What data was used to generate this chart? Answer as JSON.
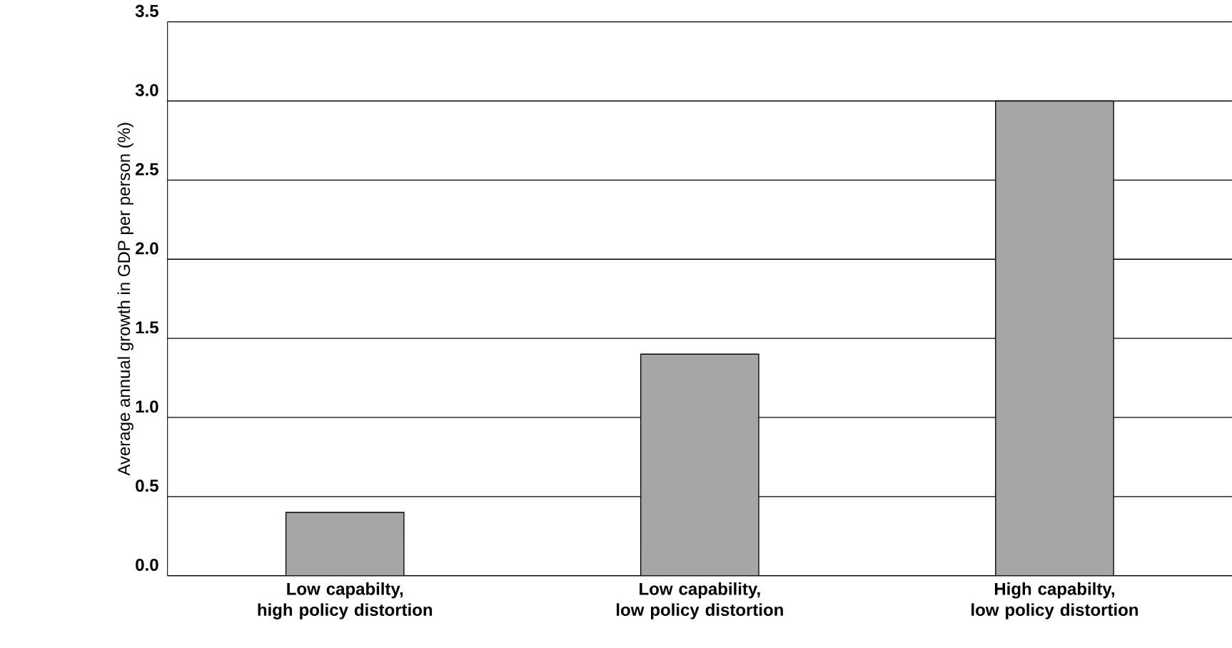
{
  "chart_data": {
    "type": "bar",
    "ylabel": "Average annual growth in GDP per person (%)",
    "categories": [
      "Low capabilty,\nhigh policy distortion",
      "Low capability,\nlow policy distortion",
      "High capabilty,\nlow policy distortion"
    ],
    "values": [
      0.4,
      1.4,
      3.0
    ],
    "color": "#a6a6a6",
    "ylim": [
      0,
      3.5
    ],
    "yticks": [
      {
        "value": 0,
        "label": "0.0"
      },
      {
        "value": 0.5,
        "label": "0.5"
      },
      {
        "value": 1,
        "label": "1.0"
      },
      {
        "value": 1.5,
        "label": "1.5"
      },
      {
        "value": 2,
        "label": "2.0"
      },
      {
        "value": 2.5,
        "label": "2.5"
      },
      {
        "value": 3,
        "label": "3.0"
      },
      {
        "value": 3.5,
        "label": "3.5"
      }
    ],
    "grid": "y"
  }
}
